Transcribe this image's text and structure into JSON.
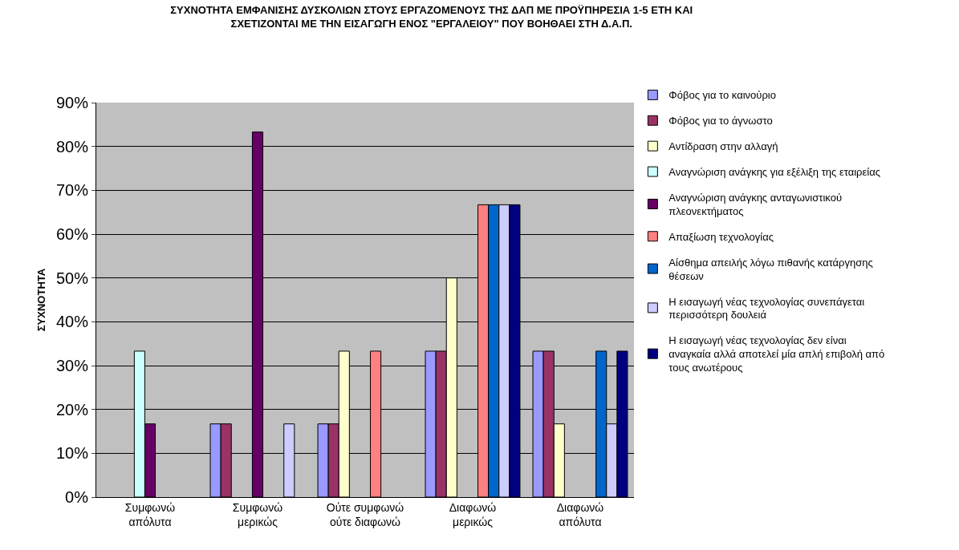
{
  "chart_data": {
    "type": "bar",
    "title": "ΣΥΧΝΟΤΗΤΑ ΕΜΦΑΝΙΣΗΣ ΔΥΣΚΟΛΙΩΝ ΣΤΟΥΣ ΕΡΓΑΖΟΜΕΝΟΥΣ ΤΗΣ ΔΑΠ ΜΕ ΠΡΟΫΠΗΡΕΣΙΑ 1-5 ΕΤΗ ΚΑΙ ΣΧΕΤΙΖΟΝΤΑΙ ΜΕ ΤΗΝ ΕΙΣΑΓΩΓΗ ΕΝΟΣ \"ΕΡΓΑΛΕΙΟΥ\" ΠΟΥ ΒΟΗΘΑΕΙ ΣΤΗ Δ.Α.Π.",
    "ylabel": "ΣΥΧΝΟΤΗΤΑ",
    "categories": [
      "Συμφωνώ απόλυτα",
      "Συμφωνώ μερικώς",
      "Ούτε συμφωνώ ούτε διαφωνώ",
      "Διαφωνώ μερικώς",
      "Διαφωνώ απόλυτα"
    ],
    "series": [
      {
        "name": "Φόβος για το καινούριο",
        "color": "#9999ff",
        "values": [
          null,
          16.7,
          16.7,
          33.3,
          33.3
        ]
      },
      {
        "name": "Φόβος για το άγνωστο",
        "color": "#993366",
        "values": [
          null,
          16.7,
          16.7,
          33.3,
          33.3
        ]
      },
      {
        "name": "Αντίδραση στην αλλαγή",
        "color": "#ffffcc",
        "values": [
          null,
          null,
          33.3,
          50,
          16.7
        ]
      },
      {
        "name": "Αναγνώριση ανάγκης για εξέλιξη της εταιρείας",
        "color": "#ccffff",
        "values": [
          33.3,
          null,
          null,
          null,
          null
        ]
      },
      {
        "name": "Αναγνώριση ανάγκης ανταγωνιστικού πλεονεκτήματος",
        "color": "#660066",
        "values": [
          16.7,
          83.3,
          null,
          null,
          null
        ]
      },
      {
        "name": "Απαξίωση τεχνολογίας",
        "color": "#ff8080",
        "values": [
          null,
          null,
          33.3,
          66.7,
          null
        ]
      },
      {
        "name": "Αίσθημα απειλής λόγω πιθανής κατάργησης θέσεων",
        "color": "#0066cc",
        "values": [
          null,
          null,
          null,
          66.7,
          33.3
        ]
      },
      {
        "name": "Η εισαγωγή νέας τεχνολογίας συνεπάγεται περισσότερη δουλειά",
        "color": "#ccccff",
        "values": [
          null,
          16.7,
          null,
          66.7,
          16.7
        ]
      },
      {
        "name": "Η εισαγωγή νέας τεχνολογίας δεν είναι αναγκαία αλλά αποτελεί μία απλή επιβολή από τους ανωτέρους",
        "color": "#000080",
        "values": [
          null,
          null,
          null,
          66.7,
          33.3
        ]
      }
    ],
    "ylim": [
      0,
      90
    ],
    "yticks": [
      {
        "value": 0,
        "label": "0%"
      },
      {
        "value": 10,
        "label": "10%"
      },
      {
        "value": 20,
        "label": "20%"
      },
      {
        "value": 30,
        "label": "30%"
      },
      {
        "value": 40,
        "label": "40%"
      },
      {
        "value": 50,
        "label": "50%"
      },
      {
        "value": 60,
        "label": "60%"
      },
      {
        "value": 70,
        "label": "70%"
      },
      {
        "value": 80,
        "label": "80%"
      },
      {
        "value": 90,
        "label": "90%"
      }
    ],
    "grid": "y",
    "legend": "right"
  }
}
